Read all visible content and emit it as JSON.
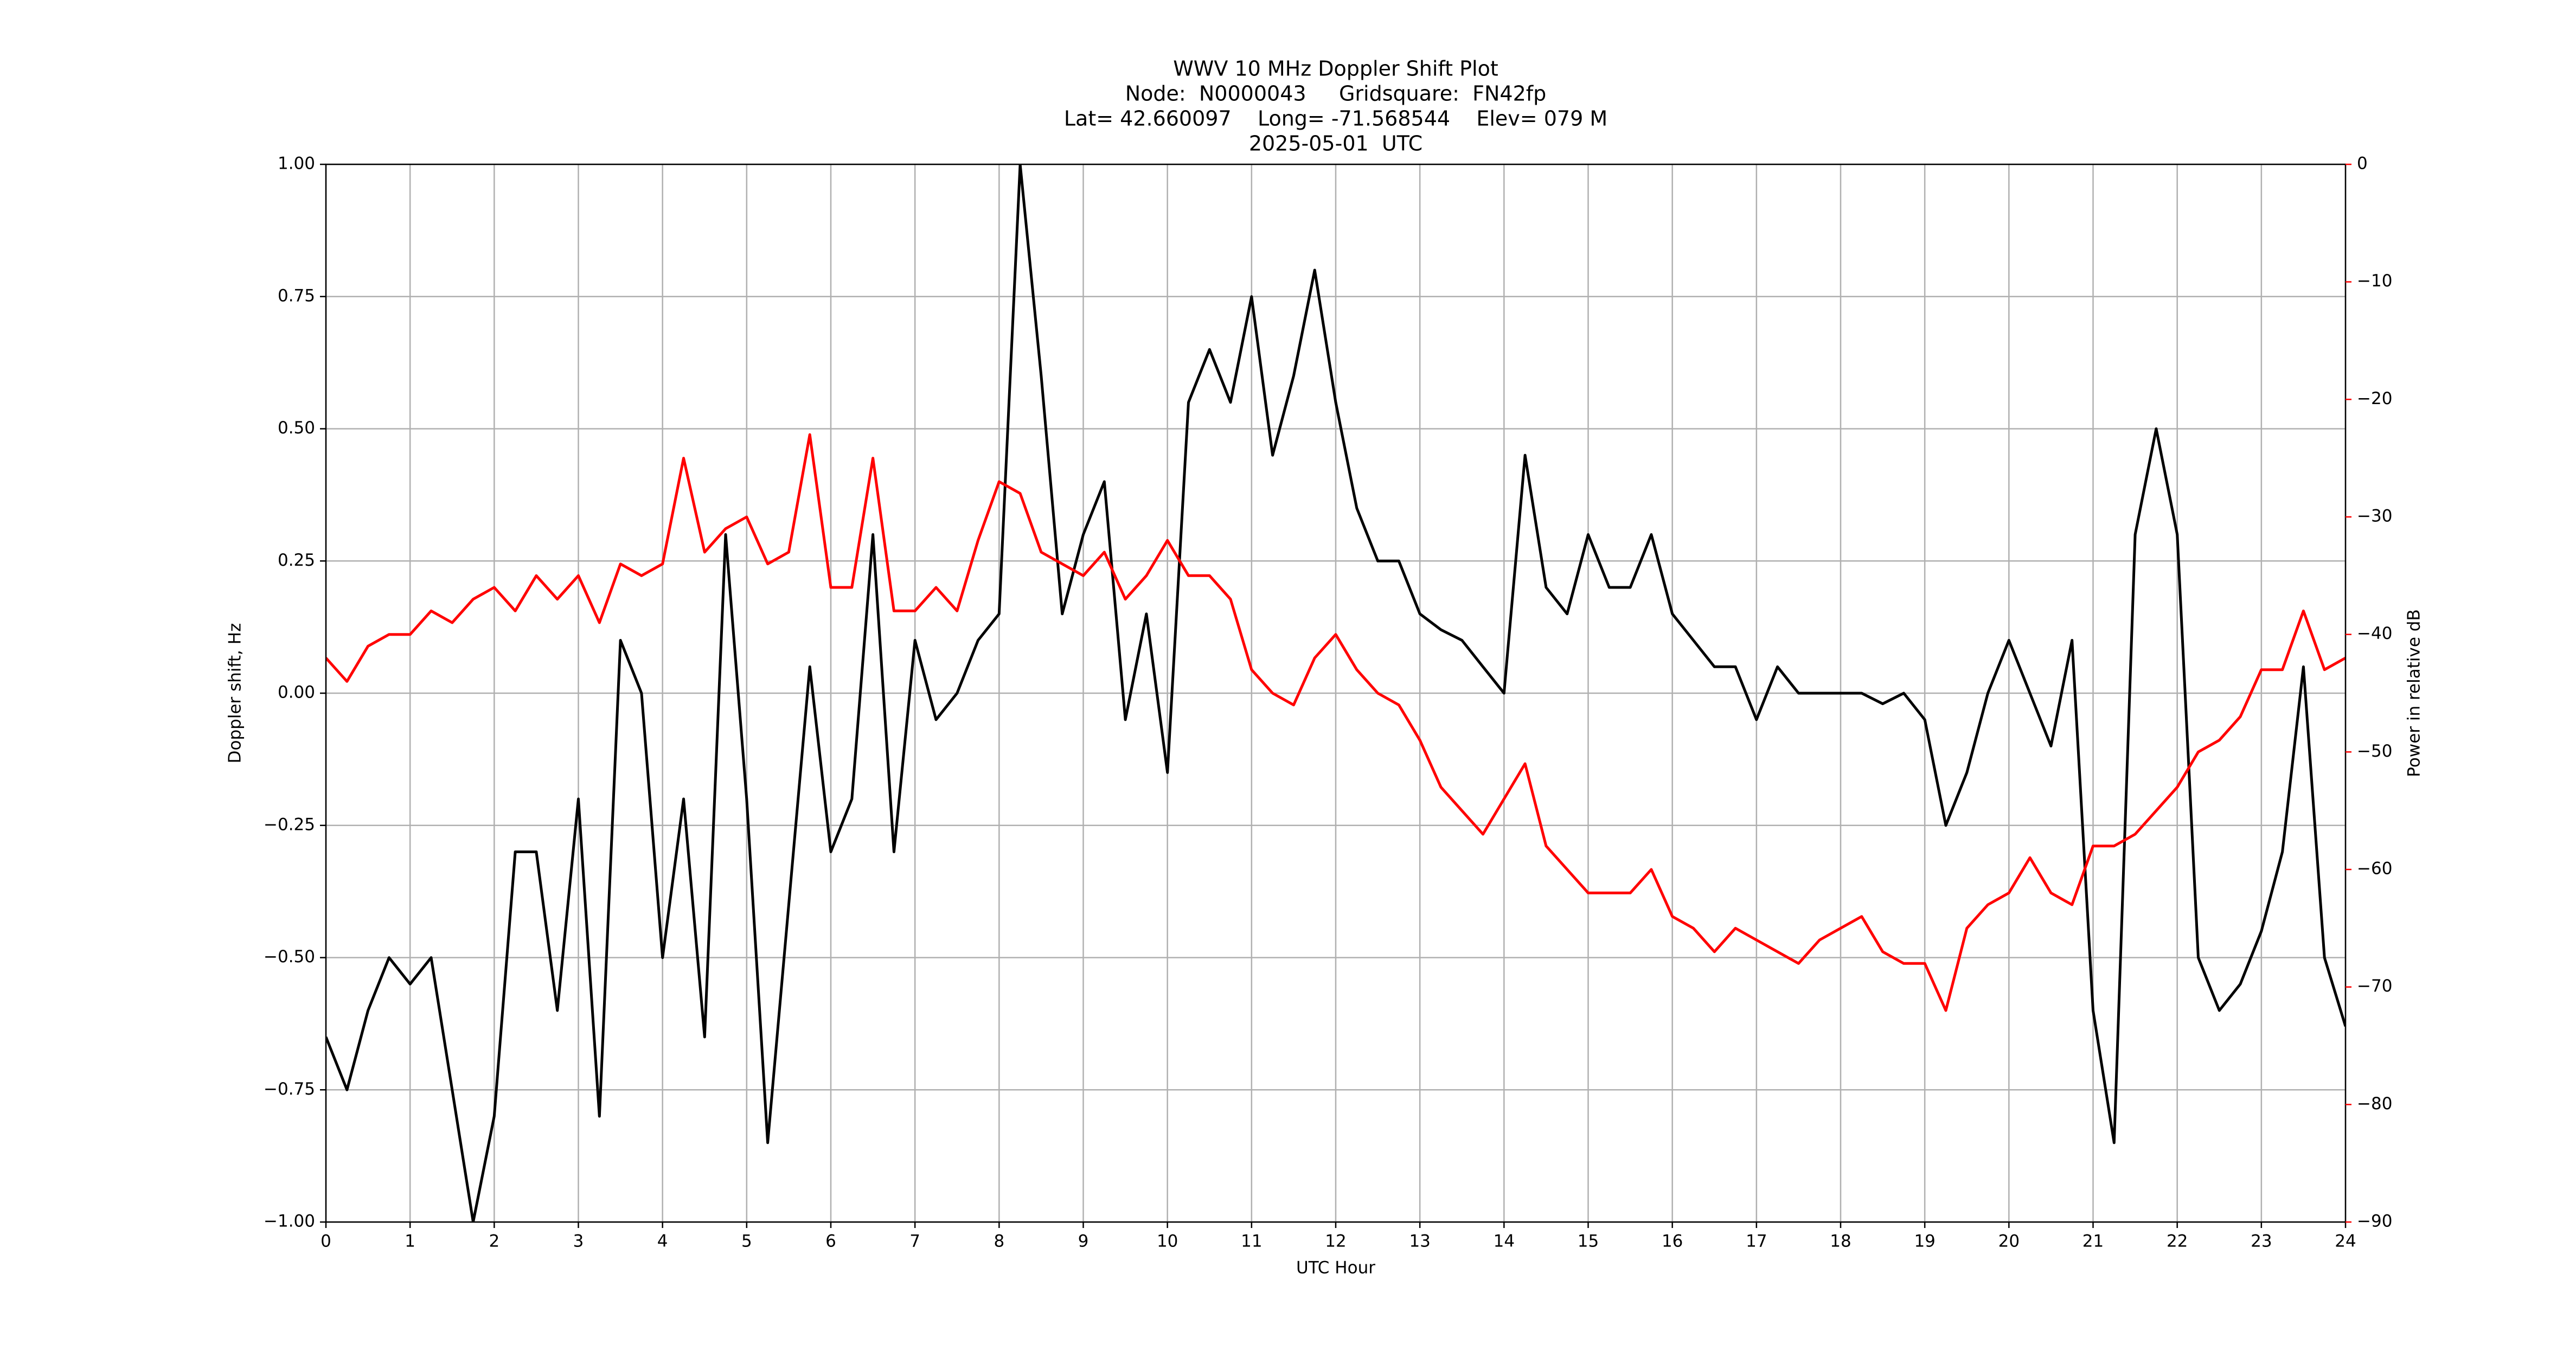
{
  "chart_data": {
    "type": "line",
    "title_lines": [
      "WWV 10 MHz Doppler Shift Plot",
      "Node:  N0000043     Gridsquare:  FN42fp",
      "Lat= 42.660097    Long= -71.568544    Elev= 079 M",
      "2025-05-01  UTC"
    ],
    "xlabel": "UTC Hour",
    "ylabel": "Doppler shift, Hz",
    "y2label": "Power in relative dB",
    "grid": true,
    "y2color": "#ff0000",
    "xlim": [
      0,
      24
    ],
    "xticks": [
      0,
      1,
      2,
      3,
      4,
      5,
      6,
      7,
      8,
      9,
      10,
      11,
      12,
      13,
      14,
      15,
      16,
      17,
      18,
      19,
      20,
      21,
      22,
      23,
      24
    ],
    "ylim": [
      -1,
      1
    ],
    "yticks": [
      {
        "value": -1,
        "label": "−1.00"
      },
      {
        "value": -0.75,
        "label": "−0.75"
      },
      {
        "value": -0.5,
        "label": "−0.50"
      },
      {
        "value": -0.25,
        "label": "−0.25"
      },
      {
        "value": 0,
        "label": "0.00"
      },
      {
        "value": 0.25,
        "label": "0.25"
      },
      {
        "value": 0.5,
        "label": "0.50"
      },
      {
        "value": 0.75,
        "label": "0.75"
      },
      {
        "value": 1,
        "label": "1.00"
      }
    ],
    "y2lim": [
      -90,
      0
    ],
    "y2ticks": [
      {
        "value": -90,
        "label": "−90"
      },
      {
        "value": -80,
        "label": "−80"
      },
      {
        "value": -70,
        "label": "−70"
      },
      {
        "value": -60,
        "label": "−60"
      },
      {
        "value": -50,
        "label": "−50"
      },
      {
        "value": -40,
        "label": "−40"
      },
      {
        "value": -30,
        "label": "−30"
      },
      {
        "value": -20,
        "label": "−20"
      },
      {
        "value": -10,
        "label": "−10"
      },
      0
    ],
    "x": [
      0,
      0.25,
      0.5,
      0.75,
      1,
      1.25,
      1.5,
      1.75,
      2,
      2.25,
      2.5,
      2.75,
      3,
      3.25,
      3.5,
      3.75,
      4,
      4.25,
      4.5,
      4.75,
      5,
      5.25,
      5.5,
      5.75,
      6,
      6.25,
      6.5,
      6.75,
      7,
      7.25,
      7.5,
      7.75,
      8,
      8.25,
      8.5,
      8.75,
      9,
      9.25,
      9.5,
      9.75,
      10,
      10.25,
      10.5,
      10.75,
      11,
      11.25,
      11.5,
      11.75,
      12,
      12.25,
      12.5,
      12.75,
      13,
      13.25,
      13.5,
      13.75,
      14,
      14.25,
      14.5,
      14.75,
      15,
      15.25,
      15.5,
      15.75,
      16,
      16.25,
      16.5,
      16.75,
      17,
      17.25,
      17.5,
      17.75,
      18,
      18.25,
      18.5,
      18.75,
      19,
      19.25,
      19.5,
      19.75,
      20,
      20.25,
      20.5,
      20.75,
      21,
      21.25,
      21.5,
      21.75,
      22,
      22.25,
      22.5,
      22.75,
      23,
      23.25,
      23.5,
      23.75,
      24
    ],
    "series": [
      {
        "color": "#000000",
        "values": [
          -0.65,
          -0.75,
          -0.6,
          -0.5,
          -0.55,
          -0.5,
          -0.75,
          -1.0,
          -0.8,
          -0.3,
          -0.3,
          -0.6,
          -0.2,
          -0.8,
          0.1,
          0.0,
          -0.5,
          -0.2,
          -0.65,
          0.3,
          -0.2,
          -0.85,
          -0.4,
          0.05,
          -0.3,
          -0.2,
          0.3,
          -0.3,
          0.1,
          -0.05,
          0.0,
          0.1,
          0.15,
          1.0,
          0.6,
          0.15,
          0.3,
          0.4,
          -0.05,
          0.15,
          -0.15,
          0.55,
          0.65,
          0.55,
          0.75,
          0.45,
          0.6,
          0.8,
          0.55,
          0.35,
          0.25,
          0.25,
          0.15,
          0.12,
          0.1,
          0.05,
          0.0,
          0.45,
          0.2,
          0.15,
          0.3,
          0.2,
          0.2,
          0.3,
          0.15,
          0.1,
          0.05,
          0.05,
          -0.05,
          0.05,
          0.0,
          0.0,
          0.0,
          0.0,
          -0.02,
          0.0,
          -0.05,
          -0.25,
          -0.15,
          0.0,
          0.1,
          0.0,
          -0.1,
          0.1,
          -0.6,
          -0.85,
          0.3,
          0.5,
          0.3,
          -0.5,
          -0.6,
          -0.55,
          -0.45,
          -0.3,
          0.05,
          -0.5,
          -0.63
        ]
      },
      {
        "color": "#ff0000",
        "axis": "y2",
        "values": [
          -42,
          -44,
          -41,
          -40,
          -40,
          -38,
          -39,
          -37,
          -36,
          -38,
          -35,
          -37,
          -35,
          -39,
          -34,
          -35,
          -34,
          -25,
          -33,
          -31,
          -30,
          -34,
          -33,
          -23,
          -36,
          -36,
          -25,
          -38,
          -38,
          -36,
          -38,
          -32,
          -27,
          -28,
          -33,
          -34,
          -35,
          -33,
          -37,
          -35,
          -32,
          -35,
          -35,
          -37,
          -43,
          -45,
          -46,
          -42,
          -40,
          -43,
          -45,
          -46,
          -49,
          -53,
          -55,
          -57,
          -54,
          -51,
          -58,
          -60,
          -62,
          -62,
          -62,
          -60,
          -64,
          -65,
          -67,
          -65,
          -66,
          -67,
          -68,
          -66,
          -65,
          -64,
          -67,
          -68,
          -68,
          -72,
          -65,
          -63,
          -62,
          -59,
          -62,
          -63,
          -58,
          -58,
          -57,
          -55,
          -53,
          -50,
          -49,
          -47,
          -43,
          -43,
          -38,
          -43,
          -42
        ]
      }
    ]
  }
}
